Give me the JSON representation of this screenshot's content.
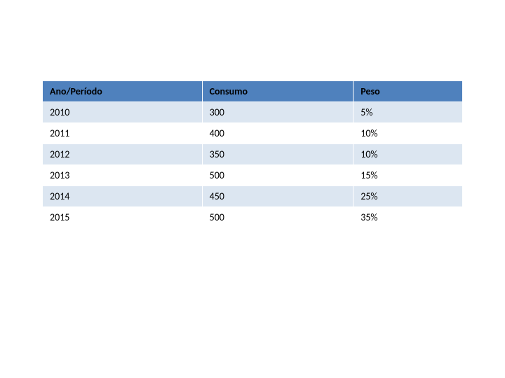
{
  "table": {
    "type": "table",
    "columns": [
      {
        "label": "Ano/Período",
        "width_pct": 38,
        "align": "left"
      },
      {
        "label": "Consumo",
        "width_pct": 36,
        "align": "left"
      },
      {
        "label": "Peso",
        "width_pct": 26,
        "align": "left"
      }
    ],
    "rows": [
      {
        "c0": "2010",
        "c1": "300",
        "c2": "5%"
      },
      {
        "c0": "2011",
        "c1": "400",
        "c2": "10%"
      },
      {
        "c0": "2012",
        "c1": "350",
        "c2": "10%"
      },
      {
        "c0": "2013",
        "c1": "500",
        "c2": "15%"
      },
      {
        "c0": "2014",
        "c1": "450",
        "c2": "25%"
      },
      {
        "c0": "2015",
        "c1": "500",
        "c2": "35%"
      }
    ],
    "header_bg": "#4f81bd",
    "header_text_color": "#000000",
    "row_odd_bg": "#dce6f1",
    "row_even_bg": "#ffffff",
    "border_color": "#ffffff",
    "font_family": "Calibri",
    "header_fontsize": 14,
    "cell_fontsize": 14,
    "header_fontweight": "bold"
  }
}
